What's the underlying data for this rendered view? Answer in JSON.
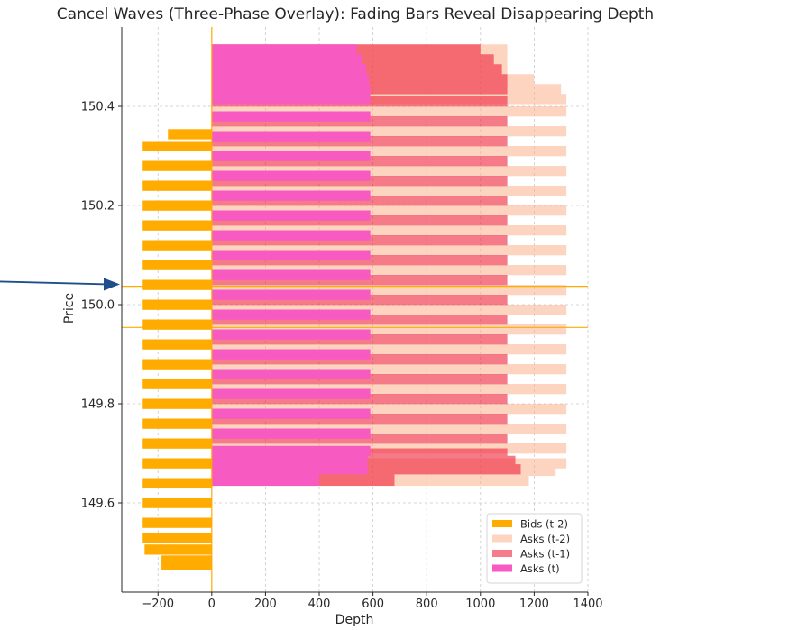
{
  "chart_data": {
    "type": "bar",
    "orientation": "horizontal",
    "title": "Cancel Waves (Three-Phase Overlay): Fading Bars Reveal Disappearing Depth",
    "xlabel": "Depth",
    "ylabel": "Price",
    "xlim": [
      -335,
      1400
    ],
    "ylim": [
      149.42,
      150.56
    ],
    "xticks": [
      -200,
      0,
      200,
      400,
      600,
      800,
      1000,
      1200,
      1400
    ],
    "xtick_labels": [
      "−200",
      "0",
      "200",
      "400",
      "600",
      "800",
      "1000",
      "1200",
      "1400"
    ],
    "yticks": [
      149.6,
      149.8,
      150.0,
      150.2,
      150.4
    ],
    "ytick_labels": [
      "149.6",
      "149.8",
      "150.0",
      "150.2",
      "150.4"
    ],
    "grid": true,
    "legend_position": "lower-right",
    "bar_height": 0.02,
    "reference_lines": {
      "y": [
        149.954,
        150.037
      ],
      "color": "#ffab00"
    },
    "annotation_arrow": {
      "target": {
        "x": -335,
        "y": 150.041
      }
    },
    "series": [
      {
        "name": "Bids (t-2)",
        "color": "#ffab00",
        "opacity": 1,
        "points": [
          {
            "price": 150.344,
            "depth": -163
          },
          {
            "price": 150.32,
            "depth": -257
          },
          {
            "price": 150.28,
            "depth": -257
          },
          {
            "price": 150.24,
            "depth": -257
          },
          {
            "price": 150.2,
            "depth": -257
          },
          {
            "price": 150.16,
            "depth": -257
          },
          {
            "price": 150.12,
            "depth": -257
          },
          {
            "price": 150.08,
            "depth": -257
          },
          {
            "price": 150.04,
            "depth": -257
          },
          {
            "price": 150.0,
            "depth": -257
          },
          {
            "price": 149.96,
            "depth": -257
          },
          {
            "price": 149.92,
            "depth": -257
          },
          {
            "price": 149.88,
            "depth": -257
          },
          {
            "price": 149.84,
            "depth": -257
          },
          {
            "price": 149.8,
            "depth": -257
          },
          {
            "price": 149.76,
            "depth": -257
          },
          {
            "price": 149.72,
            "depth": -257
          },
          {
            "price": 149.68,
            "depth": -257
          },
          {
            "price": 149.64,
            "depth": -257
          },
          {
            "price": 149.6,
            "depth": -257
          },
          {
            "price": 149.56,
            "depth": -257
          },
          {
            "price": 149.53,
            "depth": -257
          },
          {
            "price": 149.506,
            "depth": -250
          },
          {
            "price": 149.484,
            "depth": -187
          },
          {
            "price": 149.476,
            "depth": -187
          }
        ]
      },
      {
        "name": "Asks (t-2)",
        "color": "#fbb18c",
        "opacity": 0.55,
        "points": [
          {
            "price": 150.515,
            "depth": 1100
          },
          {
            "price": 150.495,
            "depth": 1100
          },
          {
            "price": 150.475,
            "depth": 1100
          },
          {
            "price": 150.455,
            "depth": 1200
          },
          {
            "price": 150.435,
            "depth": 1300
          },
          {
            "price": 150.415,
            "depth": 1320
          },
          {
            "price": 150.39,
            "depth": 1320
          },
          {
            "price": 150.35,
            "depth": 1320
          },
          {
            "price": 150.31,
            "depth": 1320
          },
          {
            "price": 150.27,
            "depth": 1320
          },
          {
            "price": 150.23,
            "depth": 1320
          },
          {
            "price": 150.19,
            "depth": 1320
          },
          {
            "price": 150.15,
            "depth": 1320
          },
          {
            "price": 150.11,
            "depth": 1320
          },
          {
            "price": 150.07,
            "depth": 1320
          },
          {
            "price": 150.03,
            "depth": 1320
          },
          {
            "price": 149.99,
            "depth": 1320
          },
          {
            "price": 149.95,
            "depth": 1320
          },
          {
            "price": 149.91,
            "depth": 1320
          },
          {
            "price": 149.87,
            "depth": 1320
          },
          {
            "price": 149.83,
            "depth": 1320
          },
          {
            "price": 149.79,
            "depth": 1320
          },
          {
            "price": 149.75,
            "depth": 1320
          },
          {
            "price": 149.71,
            "depth": 1320
          },
          {
            "price": 149.68,
            "depth": 1320
          },
          {
            "price": 149.665,
            "depth": 1280
          },
          {
            "price": 149.652,
            "depth": 1180
          },
          {
            "price": 149.645,
            "depth": 1180
          }
        ]
      },
      {
        "name": "Asks (t-1)",
        "color": "#f0243c",
        "opacity": 0.6,
        "points": [
          {
            "price": 150.515,
            "depth": 1000
          },
          {
            "price": 150.495,
            "depth": 1050
          },
          {
            "price": 150.475,
            "depth": 1080
          },
          {
            "price": 150.455,
            "depth": 1100
          },
          {
            "price": 150.435,
            "depth": 1100
          },
          {
            "price": 150.41,
            "depth": 1100
          },
          {
            "price": 150.37,
            "depth": 1100
          },
          {
            "price": 150.33,
            "depth": 1100
          },
          {
            "price": 150.29,
            "depth": 1100
          },
          {
            "price": 150.25,
            "depth": 1100
          },
          {
            "price": 150.21,
            "depth": 1100
          },
          {
            "price": 150.17,
            "depth": 1100
          },
          {
            "price": 150.13,
            "depth": 1100
          },
          {
            "price": 150.09,
            "depth": 1100
          },
          {
            "price": 150.05,
            "depth": 1100
          },
          {
            "price": 150.01,
            "depth": 1100
          },
          {
            "price": 149.97,
            "depth": 1100
          },
          {
            "price": 149.93,
            "depth": 1100
          },
          {
            "price": 149.89,
            "depth": 1100
          },
          {
            "price": 149.85,
            "depth": 1100
          },
          {
            "price": 149.81,
            "depth": 1100
          },
          {
            "price": 149.77,
            "depth": 1100
          },
          {
            "price": 149.73,
            "depth": 1100
          },
          {
            "price": 149.7,
            "depth": 1100
          },
          {
            "price": 149.685,
            "depth": 1130
          },
          {
            "price": 149.668,
            "depth": 1150
          },
          {
            "price": 149.652,
            "depth": 680
          },
          {
            "price": 149.645,
            "depth": 680
          }
        ]
      },
      {
        "name": "Asks (t)",
        "color": "#f75ac0",
        "opacity": 1,
        "points": [
          {
            "price": 150.515,
            "depth": 540
          },
          {
            "price": 150.495,
            "depth": 560
          },
          {
            "price": 150.475,
            "depth": 575
          },
          {
            "price": 150.455,
            "depth": 585
          },
          {
            "price": 150.435,
            "depth": 590
          },
          {
            "price": 150.415,
            "depth": 590
          },
          {
            "price": 150.38,
            "depth": 590
          },
          {
            "price": 150.34,
            "depth": 590
          },
          {
            "price": 150.3,
            "depth": 590
          },
          {
            "price": 150.26,
            "depth": 590
          },
          {
            "price": 150.22,
            "depth": 590
          },
          {
            "price": 150.18,
            "depth": 590
          },
          {
            "price": 150.14,
            "depth": 590
          },
          {
            "price": 150.1,
            "depth": 590
          },
          {
            "price": 150.06,
            "depth": 590
          },
          {
            "price": 150.02,
            "depth": 590
          },
          {
            "price": 149.98,
            "depth": 590
          },
          {
            "price": 149.94,
            "depth": 590
          },
          {
            "price": 149.9,
            "depth": 590
          },
          {
            "price": 149.86,
            "depth": 590
          },
          {
            "price": 149.82,
            "depth": 590
          },
          {
            "price": 149.78,
            "depth": 590
          },
          {
            "price": 149.74,
            "depth": 590
          },
          {
            "price": 149.705,
            "depth": 590
          },
          {
            "price": 149.685,
            "depth": 580
          },
          {
            "price": 149.668,
            "depth": 580
          },
          {
            "price": 149.652,
            "depth": 400
          },
          {
            "price": 149.645,
            "depth": 400
          }
        ]
      }
    ]
  }
}
